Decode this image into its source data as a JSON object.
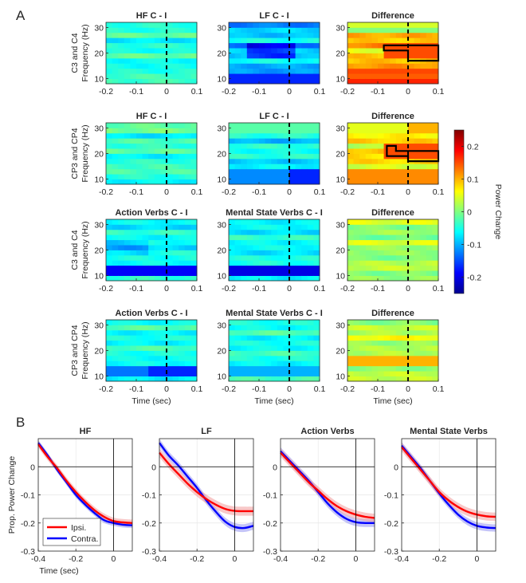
{
  "panels": {
    "a": "A",
    "b": "B"
  },
  "colors": {
    "ipsi": "#ff0000",
    "contra": "#0000ff",
    "ipsi_band": "#f4a3a3",
    "contra_band": "#9d9df4"
  },
  "colormap": {
    "name": "jet",
    "min": -0.25,
    "max": 0.25
  },
  "chart_data": [
    {
      "type": "heatmap",
      "panel": "A",
      "description_free": true,
      "x_ticks": [
        "-0.2",
        "-0.1",
        "0",
        "0.1"
      ],
      "x_tick_values": [
        -0.2,
        -0.1,
        0,
        0.1
      ],
      "xlim": [
        -0.2,
        0.1
      ],
      "y_ticks": [
        "10",
        "20",
        "30"
      ],
      "y_tick_values": [
        10,
        20,
        30
      ],
      "ylim": [
        8,
        32
      ],
      "xlabel": "Time (sec)",
      "ylabel_second": "Frequency (Hz)",
      "row_labels": [
        "C3 and C4",
        "CP3 and CP4",
        "C3 and C4",
        "CP3 and CP4"
      ],
      "titles": [
        [
          "HF C - I",
          "LF C - I",
          "Difference"
        ],
        [
          "HF C - I",
          "LF C - I",
          "Difference"
        ],
        [
          "Action Verbs C - I",
          "Mental State Verbs C - I",
          "Difference"
        ],
        [
          "Action Verbs C - I",
          "Mental State Verbs C - I",
          "Difference"
        ]
      ],
      "event_line_time": 0,
      "colorbar": {
        "label": "Power Change",
        "ticks": [
          "-0.2",
          "-0.1",
          "0",
          "0.1",
          "0.2"
        ],
        "tick_values": [
          -0.2,
          -0.1,
          0,
          0.1,
          0.2
        ],
        "range": [
          -0.25,
          0.25
        ]
      },
      "significance_outline_panels": [
        [
          0,
          2
        ],
        [
          1,
          2
        ]
      ]
    },
    {
      "type": "line",
      "panel": "B",
      "x_ticks": [
        "-0.4",
        "-0.2",
        "0"
      ],
      "x_tick_values": [
        -0.4,
        -0.2,
        0
      ],
      "xlim": [
        -0.4,
        0.1
      ],
      "y_ticks": [
        "0",
        "-0.1",
        "-0.2",
        "-0.3"
      ],
      "y_tick_values": [
        0,
        -0.1,
        -0.2,
        -0.3
      ],
      "ylim": [
        -0.3,
        0.1
      ],
      "xlabel": "Time (sec)",
      "ylabel": "Prop. Power Change",
      "legend": [
        "Ipsi.",
        "Contra."
      ],
      "legend_position": "bottom-left of first plot",
      "x": [
        -0.4,
        -0.35,
        -0.3,
        -0.25,
        -0.2,
        -0.15,
        -0.1,
        -0.05,
        0,
        0.05,
        0.1
      ],
      "plots": [
        {
          "title": "HF",
          "series": [
            {
              "name": "Ipsi.",
              "values": [
                0.08,
                0.035,
                -0.005,
                -0.05,
                -0.09,
                -0.125,
                -0.155,
                -0.178,
                -0.193,
                -0.198,
                -0.2
              ],
              "band": 0.012
            },
            {
              "name": "Contra.",
              "values": [
                0.085,
                0.04,
                -0.01,
                -0.055,
                -0.1,
                -0.135,
                -0.165,
                -0.19,
                -0.2,
                -0.206,
                -0.208
              ],
              "band": 0.01
            }
          ]
        },
        {
          "title": "LF",
          "series": [
            {
              "name": "Ipsi.",
              "values": [
                0.05,
                0.01,
                -0.025,
                -0.06,
                -0.09,
                -0.115,
                -0.135,
                -0.15,
                -0.157,
                -0.158,
                -0.158
              ],
              "band": 0.016
            },
            {
              "name": "Contra.",
              "values": [
                0.085,
                0.04,
                0.005,
                -0.035,
                -0.075,
                -0.12,
                -0.16,
                -0.195,
                -0.214,
                -0.218,
                -0.21
              ],
              "band": 0.014
            }
          ]
        },
        {
          "title": "Action Verbs",
          "series": [
            {
              "name": "Ipsi.",
              "values": [
                0.05,
                0.015,
                -0.02,
                -0.055,
                -0.085,
                -0.115,
                -0.14,
                -0.158,
                -0.17,
                -0.178,
                -0.182
              ],
              "band": 0.015
            },
            {
              "name": "Contra.",
              "values": [
                0.055,
                0.02,
                -0.015,
                -0.05,
                -0.09,
                -0.13,
                -0.162,
                -0.185,
                -0.197,
                -0.2,
                -0.2
              ],
              "band": 0.014
            }
          ]
        },
        {
          "title": "Mental State Verbs",
          "series": [
            {
              "name": "Ipsi.",
              "values": [
                0.07,
                0.03,
                -0.01,
                -0.05,
                -0.09,
                -0.12,
                -0.143,
                -0.16,
                -0.17,
                -0.176,
                -0.178
              ],
              "band": 0.015
            },
            {
              "name": "Contra.",
              "values": [
                0.075,
                0.035,
                -0.005,
                -0.05,
                -0.095,
                -0.135,
                -0.17,
                -0.195,
                -0.21,
                -0.216,
                -0.218
              ],
              "band": 0.013
            }
          ]
        }
      ]
    }
  ]
}
